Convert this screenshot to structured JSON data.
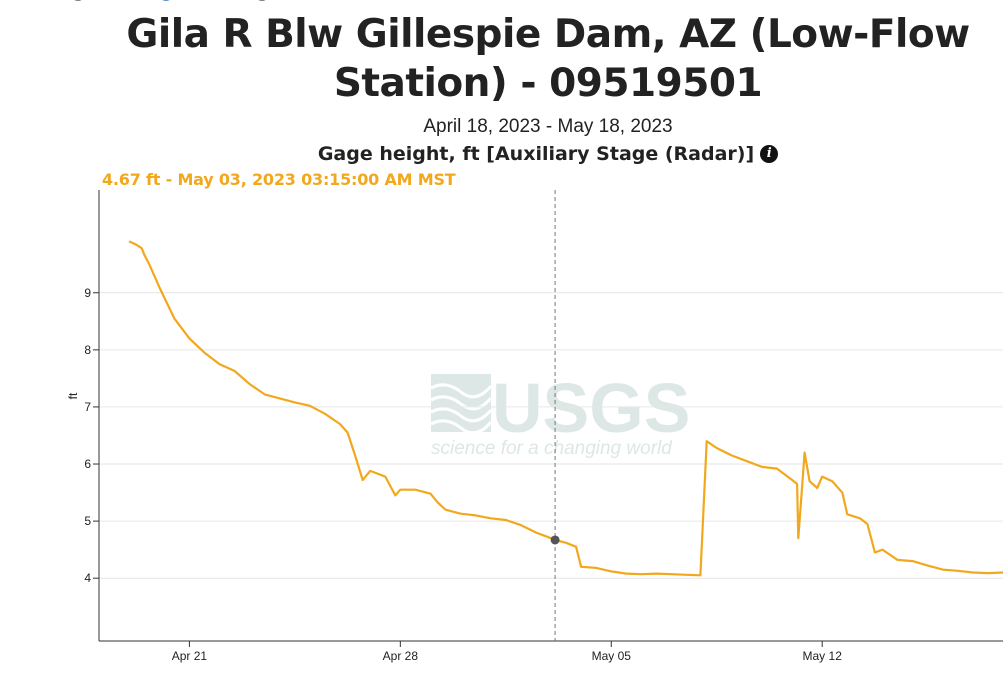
{
  "header": {
    "title_line1": "Gila R Blw Gillespie Dam, AZ (Low-Flow",
    "title_line2": "Station) - 09519501",
    "date_range": "April 18, 2023 - May 18, 2023",
    "parameter": "Gage height, ft [Auxiliary Stage (Radar)]"
  },
  "tooltip": {
    "text": "4.67 ft - May 03, 2023 03:15:00 AM MST"
  },
  "watermark": {
    "logo": "USGS",
    "tagline": "science for a changing world"
  },
  "colors": {
    "series": "#f2a81d",
    "cursor_point": "#555555",
    "grid": "#e6e6e6",
    "watermark": "#dde8e6"
  },
  "chart_data": {
    "type": "line",
    "ylabel": "ft",
    "xlabel": "",
    "xlim": [
      "2023-04-18T00:00",
      "2023-05-18T00:00"
    ],
    "ylim": [
      2.9,
      10.8
    ],
    "grid": "horizontal",
    "x_ticks": [
      "2023-04-21",
      "2023-04-28",
      "2023-05-05",
      "2023-05-12"
    ],
    "x_tick_labels": [
      "Apr 21",
      "Apr 28",
      "May 05",
      "May 12"
    ],
    "y_ticks": [
      4,
      5,
      6,
      7,
      8,
      9
    ],
    "y_tick_labels": [
      "4",
      "5",
      "6",
      "7",
      "8",
      "9"
    ],
    "cursor": {
      "x": "2023-05-03T03:15",
      "y": 4.67
    },
    "series": [
      {
        "values": [
          [
            "2023-04-19T00:00",
            9.9
          ],
          [
            "2023-04-19T05:00",
            9.85
          ],
          [
            "2023-04-19T10:00",
            9.78
          ],
          [
            "2023-04-19T12:00",
            9.67
          ],
          [
            "2023-04-19T16:00",
            9.5
          ],
          [
            "2023-04-20T00:00",
            9.1
          ],
          [
            "2023-04-20T12:00",
            8.55
          ],
          [
            "2023-04-21T00:00",
            8.2
          ],
          [
            "2023-04-21T12:00",
            7.95
          ],
          [
            "2023-04-22T00:00",
            7.75
          ],
          [
            "2023-04-22T12:00",
            7.63
          ],
          [
            "2023-04-23T00:00",
            7.4
          ],
          [
            "2023-04-23T12:00",
            7.22
          ],
          [
            "2023-04-24T00:00",
            7.15
          ],
          [
            "2023-04-24T12:00",
            7.08
          ],
          [
            "2023-04-25T00:00",
            7.02
          ],
          [
            "2023-04-25T12:00",
            6.88
          ],
          [
            "2023-04-26T00:00",
            6.7
          ],
          [
            "2023-04-26T06:00",
            6.55
          ],
          [
            "2023-04-26T12:00",
            6.15
          ],
          [
            "2023-04-26T18:00",
            5.72
          ],
          [
            "2023-04-27T00:00",
            5.88
          ],
          [
            "2023-04-27T12:00",
            5.78
          ],
          [
            "2023-04-27T20:00",
            5.45
          ],
          [
            "2023-04-28T00:00",
            5.55
          ],
          [
            "2023-04-28T12:00",
            5.55
          ],
          [
            "2023-04-29T00:00",
            5.48
          ],
          [
            "2023-04-29T06:00",
            5.32
          ],
          [
            "2023-04-29T12:00",
            5.2
          ],
          [
            "2023-04-30T00:00",
            5.13
          ],
          [
            "2023-04-30T12:00",
            5.1
          ],
          [
            "2023-05-01T00:00",
            5.05
          ],
          [
            "2023-05-01T12:00",
            5.02
          ],
          [
            "2023-05-02T00:00",
            4.93
          ],
          [
            "2023-05-02T12:00",
            4.8
          ],
          [
            "2023-05-03T00:00",
            4.7
          ],
          [
            "2023-05-03T03:15",
            4.67
          ],
          [
            "2023-05-03T12:00",
            4.62
          ],
          [
            "2023-05-03T20:00",
            4.55
          ],
          [
            "2023-05-04T00:00",
            4.2
          ],
          [
            "2023-05-04T12:00",
            4.18
          ],
          [
            "2023-05-05T00:00",
            4.12
          ],
          [
            "2023-05-05T12:00",
            4.08
          ],
          [
            "2023-05-06T00:00",
            4.07
          ],
          [
            "2023-05-06T12:00",
            4.08
          ],
          [
            "2023-05-07T00:00",
            4.07
          ],
          [
            "2023-05-07T12:00",
            4.06
          ],
          [
            "2023-05-07T23:00",
            4.05
          ],
          [
            "2023-05-08T04:00",
            6.4
          ],
          [
            "2023-05-08T12:00",
            6.28
          ],
          [
            "2023-05-09T00:00",
            6.15
          ],
          [
            "2023-05-09T12:00",
            6.05
          ],
          [
            "2023-05-10T00:00",
            5.95
          ],
          [
            "2023-05-10T12:00",
            5.92
          ],
          [
            "2023-05-11T00:00",
            5.72
          ],
          [
            "2023-05-11T04:00",
            5.65
          ],
          [
            "2023-05-11T05:00",
            4.7
          ],
          [
            "2023-05-11T08:00",
            5.6
          ],
          [
            "2023-05-11T10:00",
            6.2
          ],
          [
            "2023-05-11T14:00",
            5.7
          ],
          [
            "2023-05-11T20:00",
            5.58
          ],
          [
            "2023-05-12T00:00",
            5.78
          ],
          [
            "2023-05-12T08:00",
            5.7
          ],
          [
            "2023-05-12T16:00",
            5.5
          ],
          [
            "2023-05-12T20:00",
            5.12
          ],
          [
            "2023-05-13T06:00",
            5.05
          ],
          [
            "2023-05-13T12:00",
            4.95
          ],
          [
            "2023-05-13T18:00",
            4.45
          ],
          [
            "2023-05-14T00:00",
            4.5
          ],
          [
            "2023-05-14T12:00",
            4.32
          ],
          [
            "2023-05-15T00:00",
            4.3
          ],
          [
            "2023-05-15T12:00",
            4.22
          ],
          [
            "2023-05-16T00:00",
            4.15
          ],
          [
            "2023-05-16T12:00",
            4.13
          ],
          [
            "2023-05-17T00:00",
            4.1
          ],
          [
            "2023-05-17T12:00",
            4.09
          ],
          [
            "2023-05-18T00:00",
            4.1
          ]
        ]
      }
    ]
  }
}
